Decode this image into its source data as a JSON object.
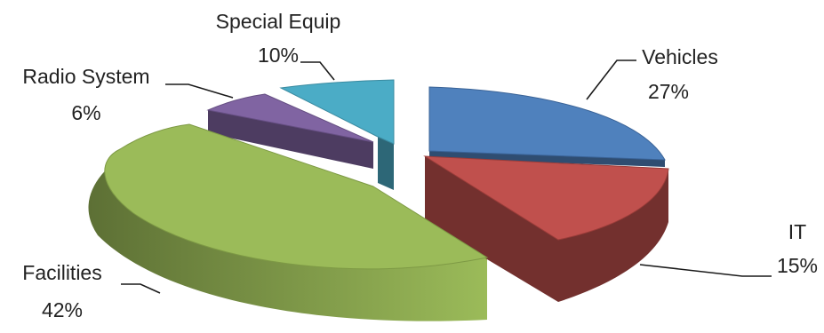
{
  "chart_data": {
    "type": "pie",
    "title": "",
    "style": "3d-exploded",
    "slices": [
      {
        "label": "Vehicles",
        "value": 27,
        "value_label": "27%",
        "color": "#4F81BD",
        "side_color": "#2F4D71"
      },
      {
        "label": "IT",
        "value": 15,
        "value_label": "15%",
        "color": "#C0504D",
        "side_color": "#73302E"
      },
      {
        "label": "Facilities",
        "value": 42,
        "value_label": "42%",
        "color": "#9BBB59",
        "side_color": "#5D7035"
      },
      {
        "label": "Radio System",
        "value": 6,
        "value_label": "6%",
        "color": "#8064A2",
        "side_color": "#4D3C61"
      },
      {
        "label": "Special Equip",
        "value": 10,
        "value_label": "10%",
        "color": "#4BACC6",
        "side_color": "#2D6777"
      }
    ]
  }
}
